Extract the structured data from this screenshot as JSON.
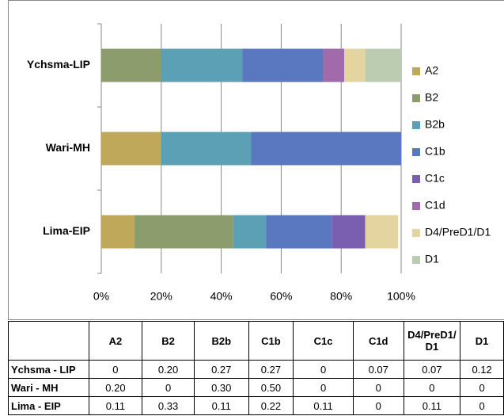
{
  "chart_data": {
    "type": "stacked-bar-horizontal",
    "categories": [
      "Ychsma-LIP",
      "Wari-MH",
      "Lima-EIP"
    ],
    "series": [
      {
        "name": "A2",
        "color": "#c0a85a",
        "values": [
          0,
          20,
          11
        ]
      },
      {
        "name": "B2",
        "color": "#8c9c6c",
        "values": [
          20,
          0,
          33
        ]
      },
      {
        "name": "B2b",
        "color": "#5ba0b4",
        "values": [
          27,
          30,
          11
        ]
      },
      {
        "name": "C1b",
        "color": "#5a78c0",
        "values": [
          27,
          50,
          22
        ]
      },
      {
        "name": "C1c",
        "color": "#7a5fb0",
        "values": [
          0,
          0,
          11
        ]
      },
      {
        "name": "C1d",
        "color": "#a06aab",
        "values": [
          7,
          0,
          0
        ]
      },
      {
        "name": "D4/PreD1/D1",
        "color": "#e3d4a0",
        "values": [
          7,
          0,
          11
        ]
      },
      {
        "name": "D1",
        "color": "#bcccb0",
        "values": [
          12,
          0,
          0
        ]
      }
    ],
    "xlim": [
      0,
      100
    ],
    "xticks": [
      {
        "value": 0,
        "label": "0%"
      },
      {
        "value": 20,
        "label": "20%"
      },
      {
        "value": 40,
        "label": "40%"
      },
      {
        "value": 60,
        "label": "60%"
      },
      {
        "value": 80,
        "label": "80%"
      },
      {
        "value": 100,
        "label": "100%"
      }
    ],
    "grid": true
  },
  "table": {
    "columns": [
      "A2",
      "B2",
      "B2b",
      "C1b",
      "C1c",
      "C1d",
      "D4/PreD1/D1",
      "D1"
    ],
    "rows": [
      {
        "label": "Ychsma - LIP",
        "cells": [
          "0",
          "0.20",
          "0.27",
          "0.27",
          "0",
          "0.07",
          "0.07",
          "0.12"
        ]
      },
      {
        "label": "Wari - MH",
        "cells": [
          "0.20",
          "0",
          "0.30",
          "0.50",
          "0",
          "0",
          "0",
          "0"
        ]
      },
      {
        "label": "Lima - EIP",
        "cells": [
          "0.11",
          "0.33",
          "0.11",
          "0.22",
          "0.11",
          "0",
          "0.11",
          "0"
        ]
      }
    ]
  }
}
